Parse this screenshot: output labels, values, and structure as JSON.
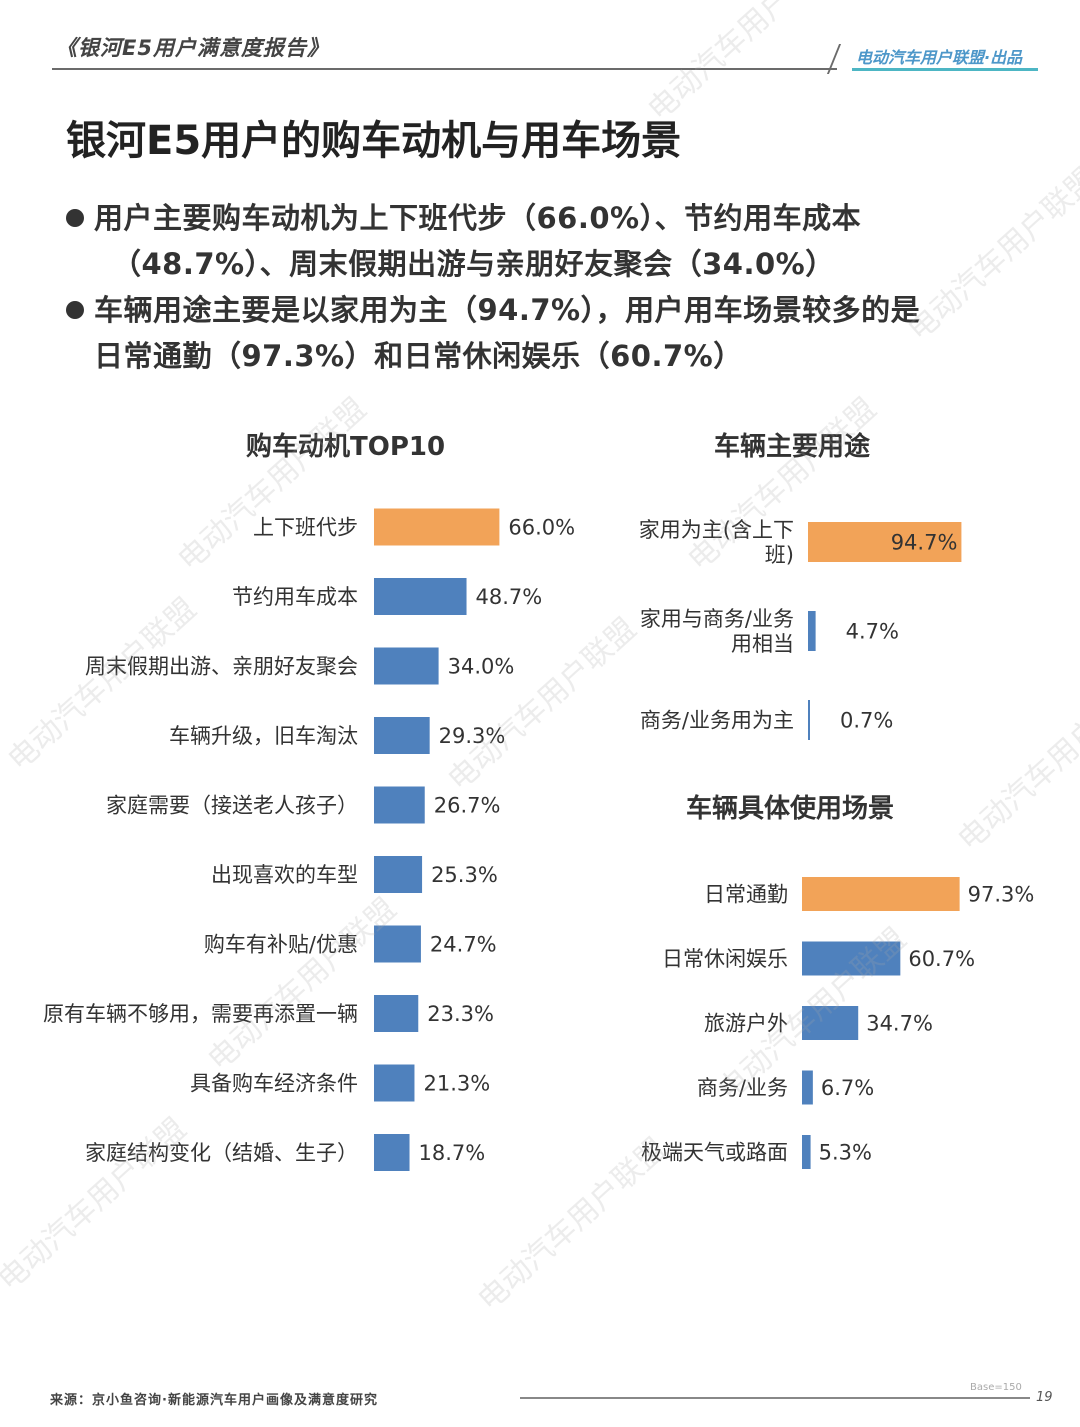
{
  "header": {
    "report_title": "《银河E5用户满意度报告》",
    "brand": "电动汽车用户联盟·出品"
  },
  "page_title": "银河E5用户的购车动机与用车场景",
  "bullets": [
    {
      "line1": "用户主要购车动机为上下班代步（66.0%）、节约用车成本",
      "line2": "（48.7%）、周末假期出游与亲朋好友聚会（34.0%）"
    },
    {
      "line1": "车辆用途主要是以家用为主（94.7%），用户用车场景较多的是",
      "line2": "日常通勤（97.3%）和日常休闲娱乐（60.7%）"
    }
  ],
  "colors": {
    "highlight": "#f2a358",
    "primary": "#4f81bd"
  },
  "chart_data": [
    {
      "type": "bar",
      "orientation": "horizontal",
      "title": "购车动机TOP10",
      "categories": [
        "上下班代步",
        "节约用车成本",
        "周末假期出游、亲朋好友聚会",
        "车辆升级，旧车淘汰",
        "家庭需要（接送老人孩子）",
        "出现喜欢的车型",
        "购车有补贴/优惠",
        "原有车辆不够用，需要再添置一辆",
        "具备购车经济条件",
        "家庭结构变化（结婚、生子）"
      ],
      "values": [
        66.0,
        48.7,
        34.0,
        29.3,
        26.7,
        25.3,
        24.7,
        23.3,
        21.3,
        18.7
      ],
      "labels": [
        "66.0%",
        "48.7%",
        "34.0%",
        "29.3%",
        "26.7%",
        "25.3%",
        "24.7%",
        "23.3%",
        "21.3%",
        "18.7%"
      ],
      "highlight_index": 0
    },
    {
      "type": "bar",
      "orientation": "horizontal",
      "title": "车辆主要用途",
      "categories": [
        "家用为主(含上下班)",
        "家用与商务/业务用相当",
        "商务/业务用为主"
      ],
      "category_lines": [
        [
          "家用为主(含上下",
          "班)"
        ],
        [
          "家用与商务/业务",
          "用相当"
        ],
        [
          "商务/业务用为主"
        ]
      ],
      "values": [
        94.7,
        4.7,
        0.7
      ],
      "labels": [
        "94.7%",
        "4.7%",
        "0.7%"
      ],
      "highlight_index": 0
    },
    {
      "type": "bar",
      "orientation": "horizontal",
      "title": "车辆具体使用场景",
      "categories": [
        "日常通勤",
        "日常休闲娱乐",
        "旅游户外",
        "商务/业务",
        "极端天气或路面"
      ],
      "values": [
        97.3,
        60.7,
        34.7,
        6.7,
        5.3
      ],
      "labels": [
        "97.3%",
        "60.7%",
        "34.7%",
        "6.7%",
        "5.3%"
      ],
      "highlight_index": 0
    }
  ],
  "footer": {
    "source": "来源：京小鱼咨询·新能源汽车用户画像及满意度研究",
    "base": "Base=150",
    "page_number": "19"
  },
  "watermark_text": "电动汽车用户联盟"
}
